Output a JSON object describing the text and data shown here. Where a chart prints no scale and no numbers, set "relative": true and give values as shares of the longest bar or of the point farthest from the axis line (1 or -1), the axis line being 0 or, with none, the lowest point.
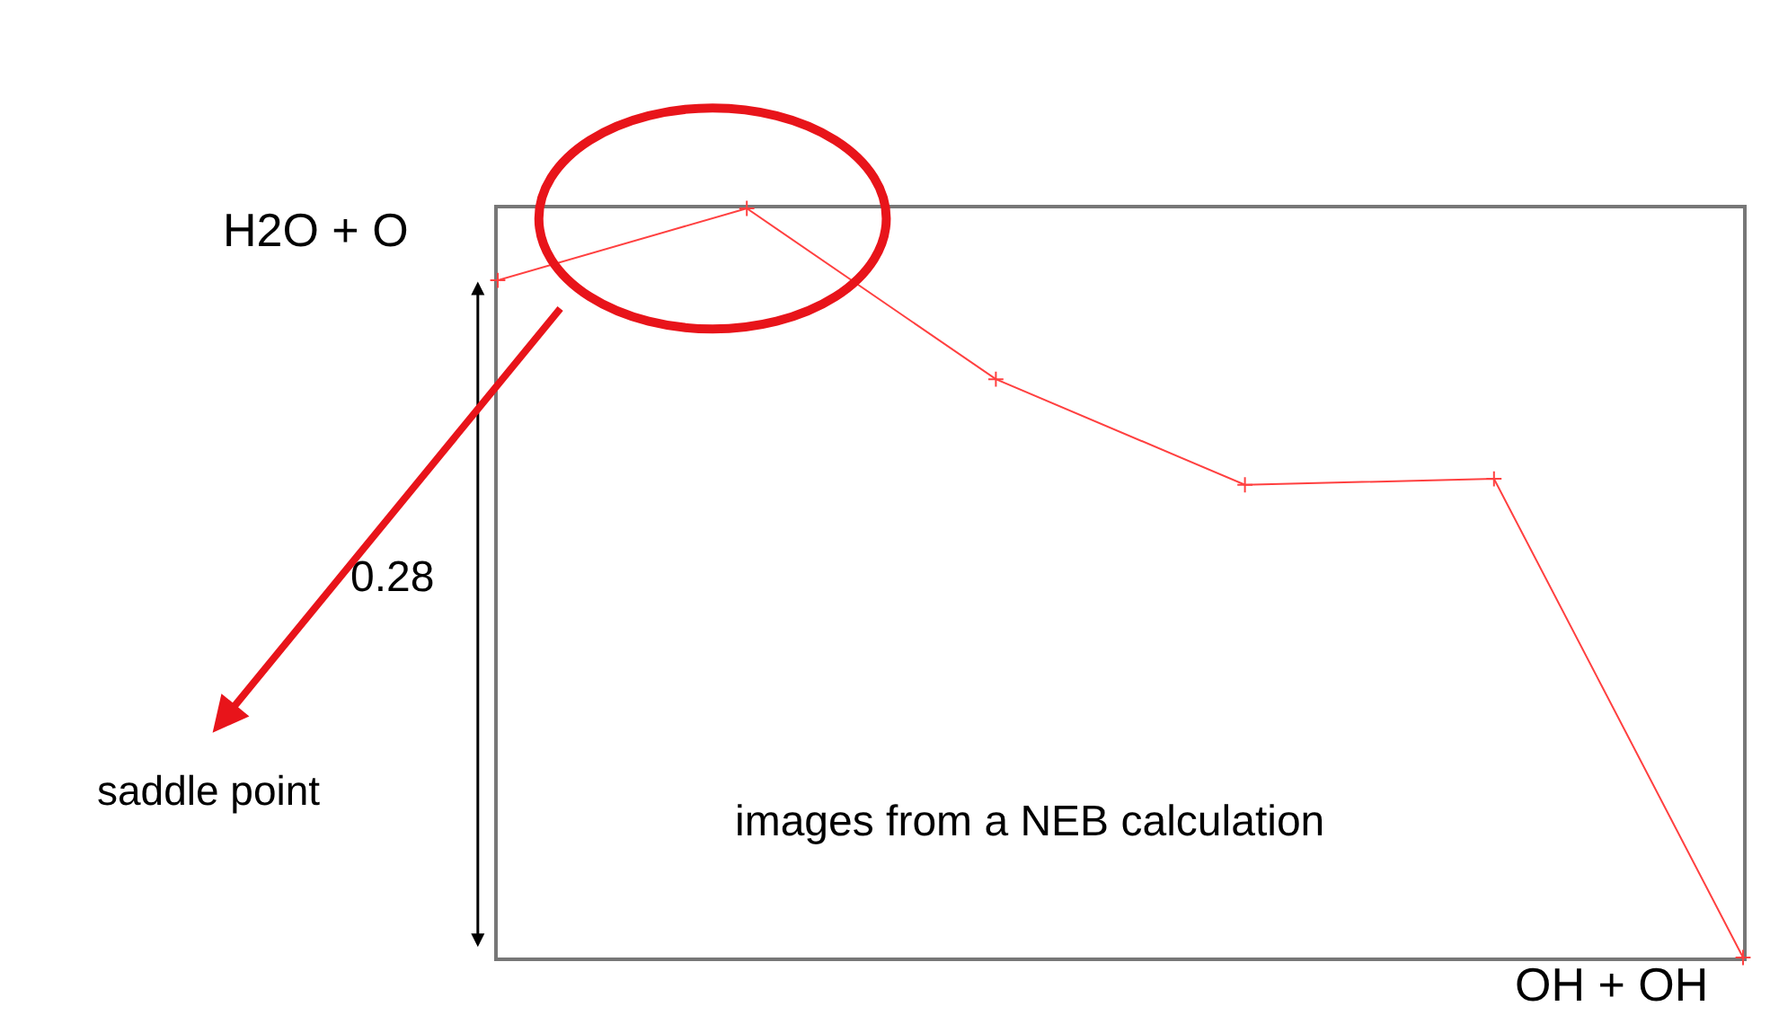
{
  "chart_data": {
    "type": "line",
    "relative": true,
    "categories": [
      null,
      null,
      null,
      null,
      null,
      null
    ],
    "series": [
      {
        "color": "#ff4040",
        "values": [
          0.904,
          1,
          0.772,
          0.631,
          0.639,
          0
        ]
      }
    ],
    "marker": "cross",
    "line_style": "solid",
    "annotations": [
      "H2O + O",
      "OH + OH",
      "0.28",
      "saddle point",
      "images from a NEB calculation"
    ]
  }
}
